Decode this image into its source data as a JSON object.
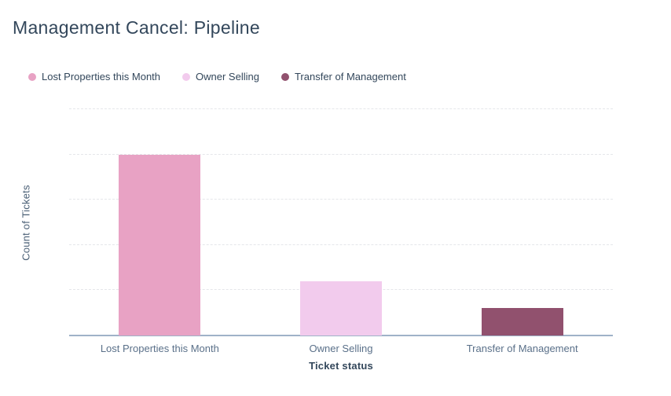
{
  "header": {
    "title": "Management Cancel: Pipeline"
  },
  "chart_data": {
    "type": "bar",
    "title": "Management Cancel: Pipeline",
    "categories": [
      "Lost Properties this Month",
      "Owner Selling",
      "Transfer of Management"
    ],
    "values": [
      20,
      6,
      3
    ],
    "series": [
      {
        "name": "Lost Properties this Month",
        "value": 20,
        "color": "#e8a2c4"
      },
      {
        "name": "Owner Selling",
        "value": 6,
        "color": "#f2cbed"
      },
      {
        "name": "Transfer of Management",
        "value": 3,
        "color": "#91516e"
      }
    ],
    "xlabel": "Ticket status",
    "ylabel": "Count of Tickets",
    "ylim": [
      0,
      25
    ],
    "gridline_step": 5,
    "grid": true,
    "gridline_style": "dashed",
    "legend_position": "top",
    "y_tick_labels_visible": false
  },
  "colors": {
    "title_text": "#33475b",
    "legend_text": "#33475b",
    "axis_label_text": "#5a7089",
    "axis_title_text": "#33475b",
    "gridline": "#e5e6ea",
    "axis_line": "#9fb2c8",
    "background": "#ffffff"
  }
}
